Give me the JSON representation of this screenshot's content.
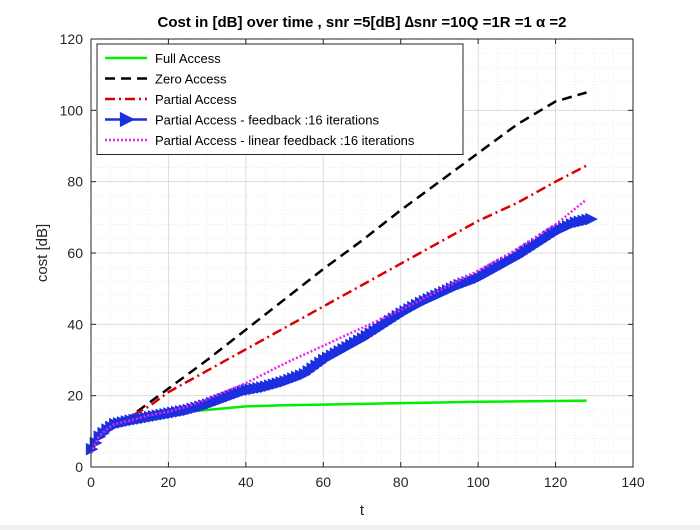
{
  "chart_data": {
    "type": "line",
    "title": "Cost in [dB] over time , snr =5[dB] ∆snr =10Q =1R =1 α =2",
    "xlabel": "t",
    "ylabel": "cost [dB]",
    "xlim": [
      0,
      140
    ],
    "ylim": [
      0,
      120
    ],
    "xticks": [
      0,
      20,
      40,
      60,
      80,
      100,
      120,
      140
    ],
    "yticks": [
      0,
      20,
      40,
      60,
      80,
      100,
      120
    ],
    "grid": true,
    "minor_grid": true,
    "legend_position": "top-left",
    "series": [
      {
        "name": "Full Access",
        "color": "#00ee00",
        "style": "solid",
        "x": [
          0,
          2,
          4,
          6,
          8,
          10,
          15,
          20,
          25,
          30,
          35,
          40,
          50,
          60,
          70,
          80,
          90,
          100,
          110,
          120,
          128
        ],
        "y": [
          4,
          8.5,
          10.5,
          11.5,
          12.5,
          13,
          14,
          15,
          15.5,
          16,
          16.5,
          17,
          17.3,
          17.5,
          17.7,
          17.9,
          18.1,
          18.3,
          18.4,
          18.5,
          18.6
        ]
      },
      {
        "name": "Zero Access",
        "color": "#000000",
        "style": "dashed",
        "x": [
          0,
          2,
          4,
          6,
          8,
          10,
          15,
          20,
          30,
          40,
          50,
          60,
          70,
          80,
          90,
          100,
          110,
          120,
          128
        ],
        "y": [
          4,
          8.5,
          10.5,
          12,
          13,
          14,
          18,
          22,
          30,
          38.5,
          47,
          55.5,
          63.5,
          72,
          80,
          88,
          96,
          102.5,
          105
        ]
      },
      {
        "name": "Partial Access",
        "color": "#dd0000",
        "style": "dashdot",
        "x": [
          0,
          2,
          4,
          6,
          8,
          10,
          15,
          20,
          30,
          40,
          50,
          60,
          70,
          80,
          90,
          100,
          110,
          120,
          128
        ],
        "y": [
          4,
          8.5,
          10.5,
          12,
          13,
          14,
          17,
          21,
          27,
          33,
          39,
          45,
          51,
          57,
          63,
          69,
          74,
          80,
          84.5
        ]
      },
      {
        "name": "Partial Access - feedback :16 iterations",
        "color": "#1b2fe0",
        "style": "solid-triangle",
        "x": [
          0,
          2,
          4,
          6,
          8,
          10,
          15,
          20,
          25,
          30,
          35,
          40,
          45,
          50,
          55,
          60,
          65,
          70,
          75,
          80,
          85,
          90,
          95,
          100,
          105,
          110,
          115,
          120,
          125,
          129
        ],
        "y": [
          5,
          8.5,
          10.5,
          12,
          12.5,
          13,
          14,
          15,
          16,
          17.5,
          19.5,
          21.5,
          22.5,
          24,
          26,
          30,
          33,
          36,
          39.5,
          43,
          46,
          48.5,
          51,
          53,
          56,
          59,
          62.5,
          66,
          68.5,
          69.5
        ]
      },
      {
        "name": "Partial Access - linear feedback :16 iterations",
        "color": "#ee22ee",
        "style": "dotted",
        "x": [
          0,
          2,
          4,
          6,
          8,
          10,
          15,
          20,
          25,
          30,
          40,
          50,
          60,
          70,
          80,
          90,
          100,
          110,
          120,
          128
        ],
        "y": [
          4,
          8.5,
          10.5,
          12,
          12.5,
          13,
          14.5,
          15.5,
          17,
          19,
          23.5,
          29,
          34,
          39,
          44,
          49.5,
          55,
          61,
          68,
          75
        ]
      }
    ]
  }
}
